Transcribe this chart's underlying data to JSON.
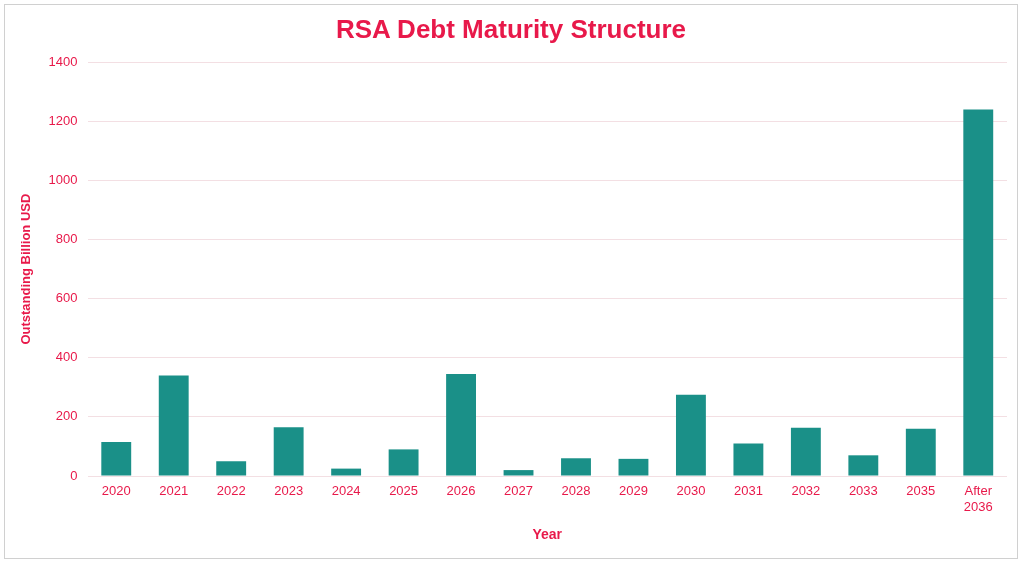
{
  "chart_data": {
    "type": "bar",
    "title": "RSA Debt Maturity Structure",
    "xlabel": "Year",
    "ylabel": "Outstanding Billion USD",
    "categories": [
      "2020",
      "2021",
      "2022",
      "2023",
      "2024",
      "2025",
      "2026",
      "2027",
      "2028",
      "2029",
      "2030",
      "2031",
      "2032",
      "2033",
      "2035",
      "After 2036"
    ],
    "values": [
      115,
      340,
      50,
      165,
      25,
      90,
      345,
      20,
      60,
      58,
      275,
      110,
      163,
      70,
      160,
      1240
    ],
    "color": "#1a9088",
    "ylim": [
      0,
      1400
    ],
    "yticks": [
      0,
      200,
      400,
      600,
      800,
      1000,
      1200,
      1400
    ],
    "grid": "y",
    "legend": false
  }
}
